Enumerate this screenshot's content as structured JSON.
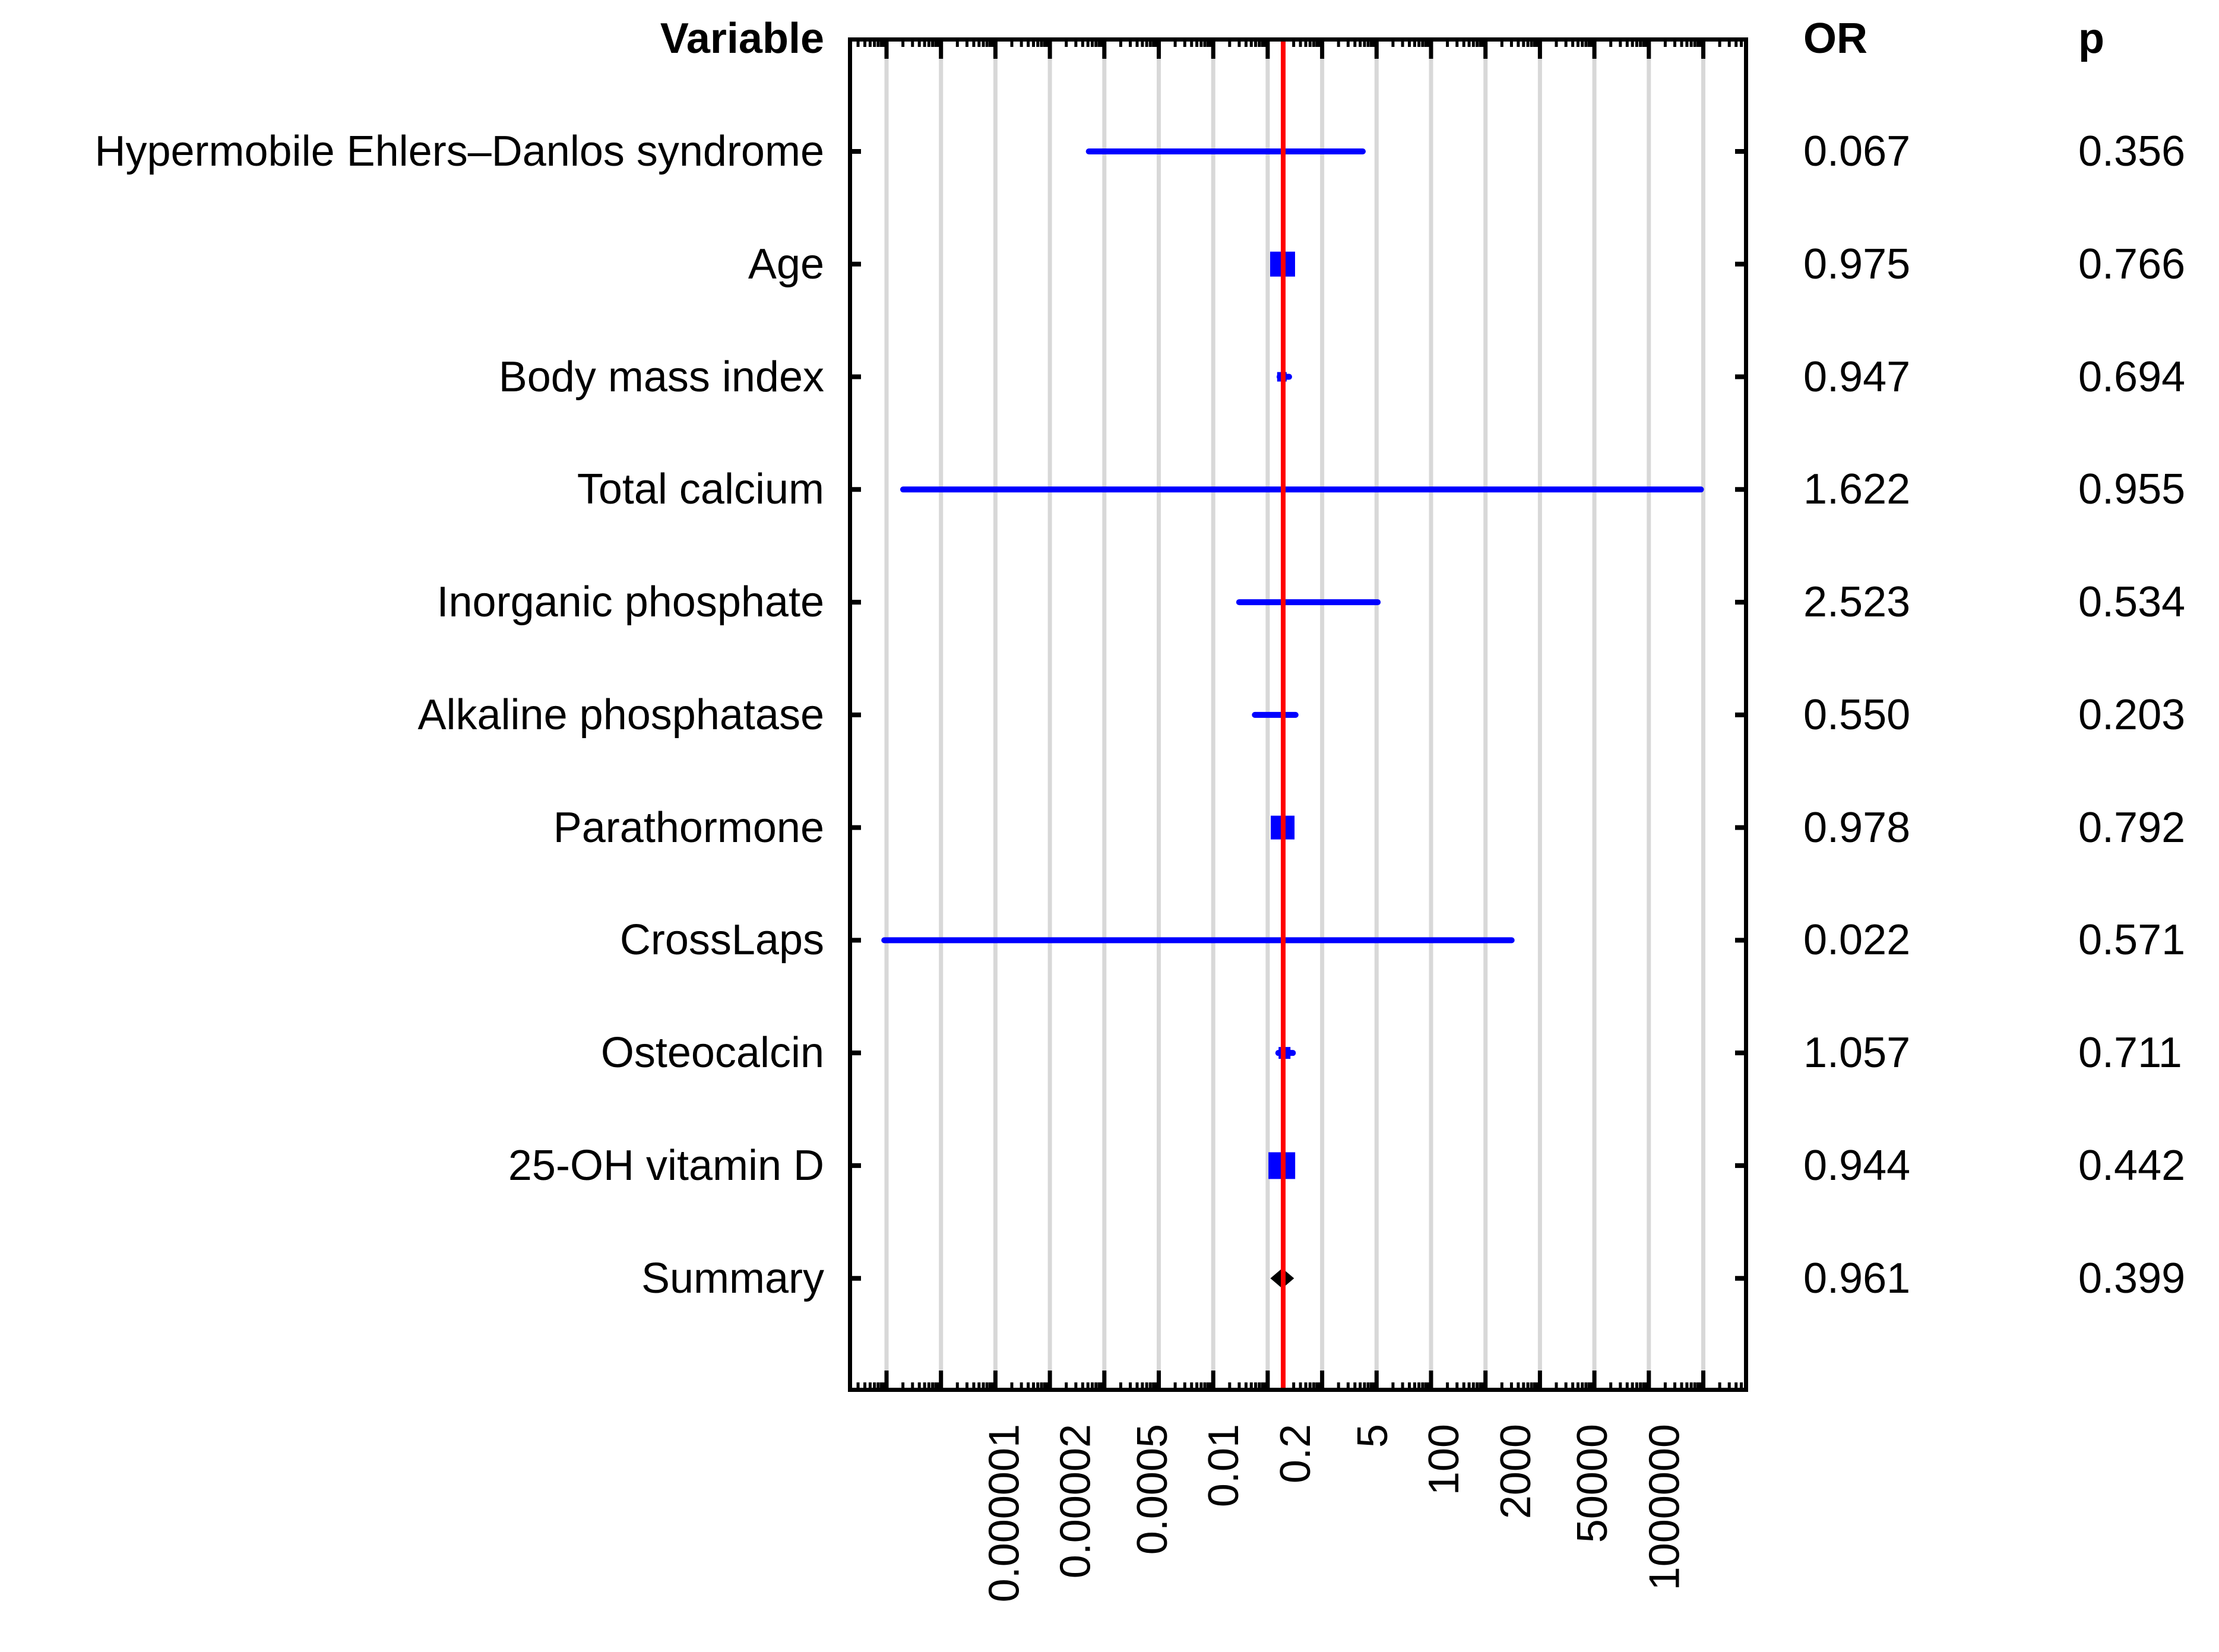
{
  "header": {
    "variable": "Variable",
    "or": "OR",
    "p": "p"
  },
  "chart_data": {
    "type": "forest",
    "title": "",
    "xscale": "log10",
    "x_axis": {
      "tick_labels": [
        "0.000001",
        "0.00002",
        "0.0005",
        "0.01",
        "0.2",
        "5",
        "100",
        "2000",
        "50000",
        "1000000"
      ],
      "tick_values": [
        1e-06,
        2e-05,
        0.0005,
        0.01,
        0.2,
        5,
        100,
        2000,
        50000,
        1000000
      ],
      "range_approx": [
        5e-08,
        50000000
      ],
      "grid": true,
      "reference_line": 1
    },
    "rows": [
      {
        "label": "Hypermobile Ehlers–Danlos syndrome",
        "or": "0.067",
        "p": "0.356",
        "or_value": 0.067,
        "ci": [
          0.00026,
          31.6
        ],
        "marker": null,
        "marker_size": 0
      },
      {
        "label": "Age",
        "or": "0.975",
        "p": "0.766",
        "or_value": 0.975,
        "ci": null,
        "marker": "square",
        "marker_size": 42
      },
      {
        "label": "Body mass index",
        "or": "0.947",
        "p": "0.694",
        "or_value": 0.947,
        "ci": [
          0.76,
          1.45
        ],
        "marker": "square",
        "marker_size": 16
      },
      {
        "label": "Total calcium",
        "or": "1.622",
        "p": "0.955",
        "or_value": 1.622,
        "ci": [
          1.1e-07,
          44000000
        ],
        "marker": null,
        "marker_size": 0
      },
      {
        "label": "Inorganic phosphate",
        "or": "2.523",
        "p": "0.534",
        "or_value": 2.523,
        "ci": [
          0.14,
          59
        ],
        "marker": null,
        "marker_size": 0
      },
      {
        "label": "Alkaline phosphatase",
        "or": "0.550",
        "p": "0.203",
        "or_value": 0.55,
        "ci": [
          0.27,
          1.9
        ],
        "marker": null,
        "marker_size": 0
      },
      {
        "label": "Parathormone",
        "or": "0.978",
        "p": "0.792",
        "or_value": 0.978,
        "ci": null,
        "marker": "square",
        "marker_size": 40
      },
      {
        "label": "CrossLaps",
        "or": "0.022",
        "p": "0.571",
        "or_value": 0.022,
        "ci": [
          5e-08,
          16000
        ],
        "marker": null,
        "marker_size": 0
      },
      {
        "label": "Osteocalcin",
        "or": "1.057",
        "p": "0.711",
        "or_value": 1.057,
        "ci": [
          0.72,
          1.7
        ],
        "marker": "square",
        "marker_size": 20
      },
      {
        "label": "25-OH vitamin D",
        "or": "0.944",
        "p": "0.442",
        "or_value": 0.944,
        "ci": null,
        "marker": "square",
        "marker_size": 45
      },
      {
        "label": "Summary",
        "or": "0.961",
        "p": "0.399",
        "or_value": 0.961,
        "ci": null,
        "marker": "diamond",
        "marker_size": 40
      }
    ],
    "legend": null,
    "colors": {
      "ci_line": "#0000ff",
      "marker": "#0000ff",
      "summary_diamond": "#000000",
      "reference_line": "#ff0000",
      "gridline": "#d8d8d8",
      "axis": "#000000"
    }
  }
}
